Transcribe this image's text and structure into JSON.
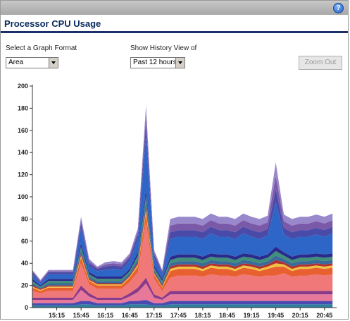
{
  "header": {
    "help_label": "?"
  },
  "title": "Processor CPU Usage",
  "controls": {
    "graph_format_label": "Select a Graph Format",
    "graph_format_value": "Area",
    "history_label": "Show History View of",
    "history_value": "Past 12 hours",
    "zoom_out_label": "Zoom Out"
  },
  "chart_data": {
    "type": "area",
    "stacked": true,
    "ylim": [
      0,
      200
    ],
    "yticks": [
      0,
      20,
      40,
      60,
      80,
      100,
      120,
      140,
      160,
      180,
      200
    ],
    "xticks": [
      "15:15",
      "15:45",
      "16:15",
      "16:45",
      "17:15",
      "17:45",
      "18:15",
      "18:45",
      "19:15",
      "19:45",
      "20:15",
      "20:45"
    ],
    "xrange": [
      "14:45",
      "21:00"
    ],
    "colors": [
      "#2f7f9f",
      "#4a4ab0",
      "#e8789a",
      "#8a3a8a",
      "#f07878",
      "#e86030",
      "#f0c040",
      "#b03030",
      "#3a6a9a",
      "#3f8f7a",
      "#2a2a8a",
      "#2e66c8",
      "#4a4aa8",
      "#7a5aa8",
      "#9a88cc"
    ],
    "x": [
      "14:45",
      "14:55",
      "15:05",
      "15:15",
      "15:25",
      "15:35",
      "15:45",
      "15:55",
      "16:05",
      "16:15",
      "16:25",
      "16:35",
      "16:45",
      "16:55",
      "17:05",
      "17:15",
      "17:25",
      "17:35",
      "17:45",
      "17:55",
      "18:05",
      "18:15",
      "18:25",
      "18:35",
      "18:45",
      "18:55",
      "19:05",
      "19:15",
      "19:25",
      "19:35",
      "19:45",
      "19:55",
      "20:05",
      "20:15",
      "20:25",
      "20:35",
      "20:45",
      "20:55"
    ],
    "series": [
      {
        "values": [
          2,
          2,
          2,
          2,
          2,
          2,
          3,
          3,
          2,
          2,
          2,
          2,
          3,
          3,
          3,
          2,
          2,
          3,
          3,
          3,
          3,
          3,
          3,
          3,
          3,
          3,
          3,
          3,
          3,
          3,
          3,
          3,
          3,
          3,
          3,
          3,
          3,
          3
        ]
      },
      {
        "values": [
          2,
          2,
          2,
          2,
          2,
          2,
          3,
          3,
          2,
          2,
          2,
          2,
          3,
          3,
          4,
          2,
          2,
          3,
          3,
          3,
          3,
          3,
          3,
          3,
          3,
          3,
          3,
          3,
          3,
          3,
          3,
          3,
          3,
          3,
          3,
          3,
          3,
          3
        ]
      },
      {
        "values": [
          3,
          3,
          3,
          3,
          3,
          3,
          10,
          4,
          3,
          3,
          3,
          3,
          4,
          8,
          15,
          5,
          3,
          6,
          6,
          6,
          6,
          6,
          6,
          6,
          6,
          6,
          6,
          6,
          6,
          6,
          6,
          6,
          6,
          6,
          6,
          6,
          6,
          6
        ]
      },
      {
        "values": [
          2,
          2,
          2,
          2,
          2,
          2,
          4,
          3,
          2,
          2,
          2,
          2,
          3,
          4,
          5,
          3,
          2,
          3,
          3,
          3,
          3,
          3,
          3,
          3,
          3,
          3,
          3,
          3,
          3,
          3,
          3,
          3,
          3,
          3,
          3,
          3,
          3,
          3
        ]
      },
      {
        "values": [
          6,
          4,
          6,
          6,
          6,
          6,
          20,
          8,
          8,
          8,
          8,
          8,
          10,
          14,
          50,
          14,
          6,
          12,
          14,
          14,
          14,
          13,
          15,
          14,
          14,
          13,
          15,
          14,
          13,
          14,
          14,
          16,
          13,
          14,
          14,
          15,
          14,
          15
        ]
      },
      {
        "values": [
          3,
          2,
          3,
          3,
          3,
          3,
          5,
          3,
          3,
          3,
          3,
          3,
          4,
          5,
          8,
          4,
          3,
          6,
          6,
          6,
          6,
          5,
          6,
          6,
          6,
          5,
          6,
          6,
          5,
          6,
          8,
          6,
          5,
          6,
          6,
          6,
          6,
          6
        ]
      },
      {
        "values": [
          1,
          1,
          1,
          1,
          1,
          1,
          2,
          1,
          1,
          1,
          1,
          1,
          1,
          2,
          3,
          1,
          1,
          2,
          2,
          2,
          2,
          2,
          2,
          2,
          2,
          2,
          2,
          2,
          2,
          2,
          3,
          2,
          2,
          2,
          2,
          2,
          2,
          2
        ]
      },
      {
        "values": [
          1,
          1,
          1,
          1,
          1,
          1,
          2,
          1,
          1,
          1,
          1,
          1,
          1,
          2,
          3,
          1,
          1,
          2,
          2,
          2,
          2,
          2,
          2,
          2,
          2,
          2,
          2,
          2,
          2,
          2,
          3,
          2,
          2,
          2,
          2,
          2,
          2,
          2
        ]
      },
      {
        "values": [
          2,
          1,
          2,
          2,
          2,
          2,
          3,
          2,
          2,
          2,
          2,
          2,
          2,
          3,
          5,
          2,
          2,
          3,
          3,
          3,
          3,
          3,
          3,
          3,
          3,
          3,
          3,
          3,
          3,
          3,
          4,
          3,
          3,
          3,
          3,
          3,
          3,
          3
        ]
      },
      {
        "values": [
          2,
          1,
          2,
          2,
          2,
          2,
          3,
          2,
          2,
          2,
          2,
          2,
          2,
          3,
          5,
          2,
          2,
          3,
          3,
          3,
          3,
          3,
          3,
          3,
          3,
          3,
          3,
          3,
          3,
          3,
          4,
          3,
          3,
          3,
          3,
          3,
          3,
          3
        ]
      },
      {
        "values": [
          2,
          1,
          2,
          2,
          2,
          2,
          3,
          2,
          2,
          2,
          2,
          2,
          2,
          3,
          5,
          2,
          2,
          3,
          3,
          3,
          3,
          3,
          3,
          3,
          3,
          3,
          3,
          3,
          3,
          3,
          4,
          3,
          3,
          3,
          3,
          3,
          3,
          3
        ]
      },
      {
        "values": [
          4,
          2,
          4,
          4,
          4,
          4,
          14,
          5,
          5,
          6,
          7,
          6,
          7,
          12,
          50,
          7,
          4,
          16,
          16,
          16,
          16,
          16,
          18,
          16,
          16,
          16,
          18,
          16,
          16,
          17,
          40,
          16,
          16,
          16,
          16,
          17,
          16,
          18
        ]
      },
      {
        "values": [
          2,
          1,
          2,
          2,
          2,
          2,
          4,
          3,
          2,
          3,
          3,
          3,
          3,
          4,
          10,
          3,
          2,
          6,
          6,
          6,
          6,
          6,
          6,
          6,
          6,
          6,
          6,
          6,
          6,
          6,
          12,
          6,
          6,
          6,
          6,
          6,
          6,
          6
        ]
      },
      {
        "values": [
          1,
          1,
          1,
          1,
          1,
          1,
          3,
          2,
          1,
          2,
          2,
          2,
          2,
          3,
          8,
          2,
          1,
          6,
          6,
          6,
          6,
          6,
          6,
          6,
          6,
          6,
          6,
          6,
          6,
          6,
          12,
          6,
          6,
          6,
          6,
          6,
          6,
          6
        ]
      },
      {
        "values": [
          1,
          1,
          1,
          1,
          1,
          1,
          3,
          2,
          1,
          2,
          2,
          2,
          2,
          3,
          8,
          2,
          1,
          6,
          6,
          6,
          6,
          6,
          6,
          6,
          6,
          6,
          6,
          6,
          6,
          6,
          12,
          6,
          6,
          6,
          6,
          6,
          6,
          6
        ]
      }
    ]
  }
}
